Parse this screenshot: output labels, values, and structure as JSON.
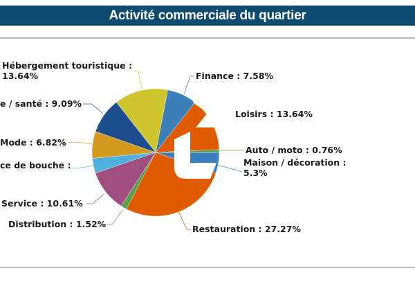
{
  "header": {
    "title": "Activité commerciale du quartier"
  },
  "chart_data": {
    "type": "pie",
    "title": "Activité commerciale du quartier",
    "start_angle_deg": 11,
    "direction": "clockwise",
    "slices": [
      {
        "label": "Finance : 7.58%",
        "value": 7.58,
        "color": "#3d7fb8"
      },
      {
        "label": "Loisirs : 13.64%",
        "value": 13.64,
        "color": "#e05a00"
      },
      {
        "label": "Auto / moto : 0.76%",
        "value": 0.76,
        "color": "#5aa04a"
      },
      {
        "label_lines": [
          "Maison / décoration :",
          "5.3%"
        ],
        "value": 5.3,
        "color": "#3b7fbf"
      },
      {
        "label": "Restauration : 27.27%",
        "value": 27.27,
        "color": "#e05a00"
      },
      {
        "label": "Distribution : 1.52%",
        "value": 1.52,
        "color": "#5a9e4a"
      },
      {
        "label": "Service : 10.61%",
        "value": 10.61,
        "color": "#a04e80"
      },
      {
        "label": "ce de bouche :",
        "value": 3.78,
        "color": "#4fb0e0"
      },
      {
        "label": "Mode : 6.82%",
        "value": 6.82,
        "color": "#d39a20"
      },
      {
        "label": "e / santé : 9.09%",
        "value": 9.09,
        "color": "#1d4d8e"
      },
      {
        "label_lines": [
          "Hébergement touristique :",
          "13.64%"
        ],
        "value": 13.64,
        "color": "#cfc52e"
      }
    ]
  }
}
